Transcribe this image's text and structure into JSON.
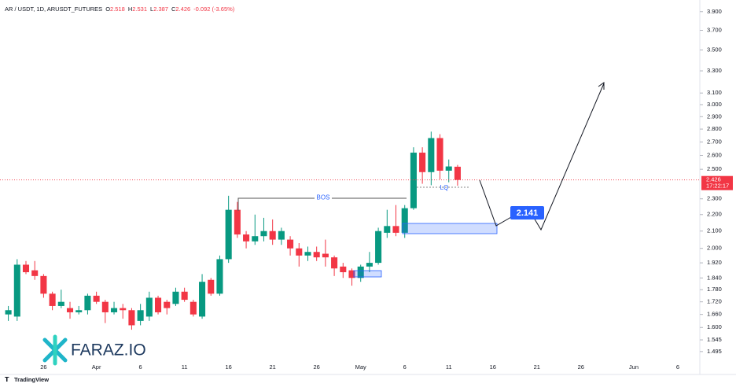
{
  "header": {
    "symbol": "AR / USDT, 1D, ARUSDT_FUTURES",
    "o_label": "O",
    "o": "2.518",
    "h_label": "H",
    "h": "2.531",
    "l_label": "L",
    "l": "2.387",
    "c_label": "C",
    "c": "2.426",
    "change": "-0.092 (-3.65%)"
  },
  "chart_data": {
    "type": "candlestick",
    "log_scale": true,
    "up_color": "#089981",
    "down_color": "#f23645",
    "categories": [
      null,
      null,
      null,
      null,
      "26",
      null,
      null,
      null,
      null,
      null,
      "Apr",
      null,
      null,
      null,
      null,
      "6",
      null,
      null,
      null,
      null,
      "11",
      null,
      null,
      null,
      null,
      "16",
      null,
      null,
      null,
      null,
      "21",
      null,
      null,
      null,
      null,
      "26",
      null,
      null,
      null,
      null,
      "May",
      null,
      null,
      null,
      null,
      "6",
      null,
      null,
      null,
      null,
      "11",
      null,
      null,
      null,
      null,
      "16",
      null,
      null,
      null,
      null,
      "21",
      null,
      null,
      null,
      null,
      "26",
      null,
      null,
      null,
      null,
      null,
      "Jun",
      null,
      null,
      null,
      null,
      "6",
      null,
      null
    ],
    "open": [
      1.66,
      1.65,
      1.91,
      1.88,
      1.85,
      1.76,
      1.7,
      1.69,
      1.67,
      1.68,
      1.75,
      1.72,
      1.67,
      1.69,
      1.68,
      1.63,
      1.65,
      1.74,
      1.72,
      1.71,
      1.77,
      1.72,
      1.65,
      1.83,
      1.76,
      1.94,
      2.23,
      2.08,
      2.04,
      2.07,
      2.1,
      2.05,
      2.05,
      2.0,
      1.96,
      1.98,
      1.97,
      1.95,
      1.9,
      1.88,
      1.84,
      1.9,
      1.92,
      2.09,
      2.13,
      2.09,
      2.24,
      2.62,
      2.48,
      2.73,
      2.49,
      2.518,
      null,
      null,
      null,
      null,
      null,
      null,
      null,
      null,
      null,
      null,
      null,
      null,
      null,
      null,
      null,
      null,
      null,
      null,
      null,
      null,
      null,
      null,
      null,
      null,
      null,
      null,
      null
    ],
    "high": [
      1.7,
      1.94,
      1.93,
      1.93,
      1.86,
      1.77,
      1.78,
      1.72,
      1.7,
      1.76,
      1.77,
      1.73,
      1.72,
      1.71,
      1.69,
      1.71,
      1.77,
      1.75,
      1.73,
      1.79,
      1.79,
      1.73,
      1.86,
      1.84,
      1.96,
      2.32,
      2.28,
      2.1,
      2.2,
      2.18,
      2.17,
      2.12,
      2.07,
      2.03,
      2.01,
      2.01,
      2.05,
      1.96,
      1.92,
      1.89,
      1.91,
      1.98,
      2.12,
      2.23,
      2.26,
      2.26,
      2.66,
      2.66,
      2.78,
      2.76,
      2.57,
      2.531,
      null,
      null,
      null,
      null,
      null,
      null,
      null,
      null,
      null,
      null,
      null,
      null,
      null,
      null,
      null,
      null,
      null,
      null,
      null,
      null,
      null,
      null,
      null,
      null,
      null,
      null,
      null
    ],
    "low": [
      1.63,
      1.63,
      1.86,
      1.83,
      1.74,
      1.68,
      1.69,
      1.64,
      1.66,
      1.66,
      1.71,
      1.62,
      1.66,
      1.64,
      1.59,
      1.61,
      1.63,
      1.66,
      1.66,
      1.7,
      1.72,
      1.65,
      1.64,
      1.75,
      1.75,
      1.92,
      2.06,
      2.0,
      2.02,
      2.04,
      2.02,
      2.02,
      1.96,
      1.9,
      1.93,
      1.93,
      1.9,
      1.85,
      1.84,
      1.8,
      1.82,
      1.87,
      1.91,
      2.06,
      2.07,
      2.06,
      2.23,
      2.4,
      2.39,
      2.43,
      2.41,
      2.387,
      null,
      null,
      null,
      null,
      null,
      null,
      null,
      null,
      null,
      null,
      null,
      null,
      null,
      null,
      null,
      null,
      null,
      null,
      null,
      null,
      null,
      null,
      null,
      null,
      null,
      null,
      null
    ],
    "close": [
      1.68,
      1.91,
      1.87,
      1.85,
      1.76,
      1.7,
      1.72,
      1.67,
      1.68,
      1.75,
      1.72,
      1.67,
      1.69,
      1.68,
      1.61,
      1.68,
      1.74,
      1.67,
      1.69,
      1.77,
      1.73,
      1.66,
      1.82,
      1.76,
      1.94,
      2.23,
      2.08,
      2.04,
      2.07,
      2.1,
      2.05,
      2.1,
      2.0,
      1.96,
      1.98,
      1.95,
      1.95,
      1.89,
      1.87,
      1.84,
      1.9,
      1.92,
      2.1,
      2.13,
      2.09,
      2.24,
      2.62,
      2.48,
      2.73,
      2.49,
      2.52,
      2.426,
      null,
      null,
      null,
      null,
      null,
      null,
      null,
      null,
      null,
      null,
      null,
      null,
      null,
      null,
      null,
      null,
      null,
      null,
      null,
      null,
      null,
      null,
      null,
      null,
      null,
      null,
      null
    ],
    "ylim": [
      1.452,
      4.03
    ],
    "yticks": [
      {
        "value": 3.9,
        "label": "3.900"
      },
      {
        "value": 3.7,
        "label": "3.700"
      },
      {
        "value": 3.5,
        "label": "3.500"
      },
      {
        "value": 3.3,
        "label": "3.300"
      },
      {
        "value": 3.1,
        "label": "3.100"
      },
      {
        "value": 3.0,
        "label": "3.000"
      },
      {
        "value": 2.9,
        "label": "2.900"
      },
      {
        "value": 2.8,
        "label": "2.800"
      },
      {
        "value": 2.7,
        "label": "2.700"
      },
      {
        "value": 2.6,
        "label": "2.600"
      },
      {
        "value": 2.5,
        "label": "2.500"
      },
      {
        "value": 2.3,
        "label": "2.300"
      },
      {
        "value": 2.2,
        "label": "2.200"
      },
      {
        "value": 2.1,
        "label": "2.100"
      },
      {
        "value": 2.0,
        "label": "2.000"
      },
      {
        "value": 1.92,
        "label": "1.920"
      },
      {
        "value": 1.84,
        "label": "1.840"
      },
      {
        "value": 1.78,
        "label": "1.780"
      },
      {
        "value": 1.72,
        "label": "1.720"
      },
      {
        "value": 1.66,
        "label": "1.660"
      },
      {
        "value": 1.6,
        "label": "1.600"
      },
      {
        "value": 1.545,
        "label": "1.545"
      },
      {
        "value": 1.495,
        "label": "1.495"
      }
    ],
    "last_price": {
      "value": 2.426,
      "label": "2.426",
      "countdown": "17:22:17"
    },
    "annotations": {
      "bos": "BOS",
      "lq": "LQ",
      "target": "2.141"
    }
  },
  "logo": "FARAZ.IO",
  "footer": "TradingView"
}
